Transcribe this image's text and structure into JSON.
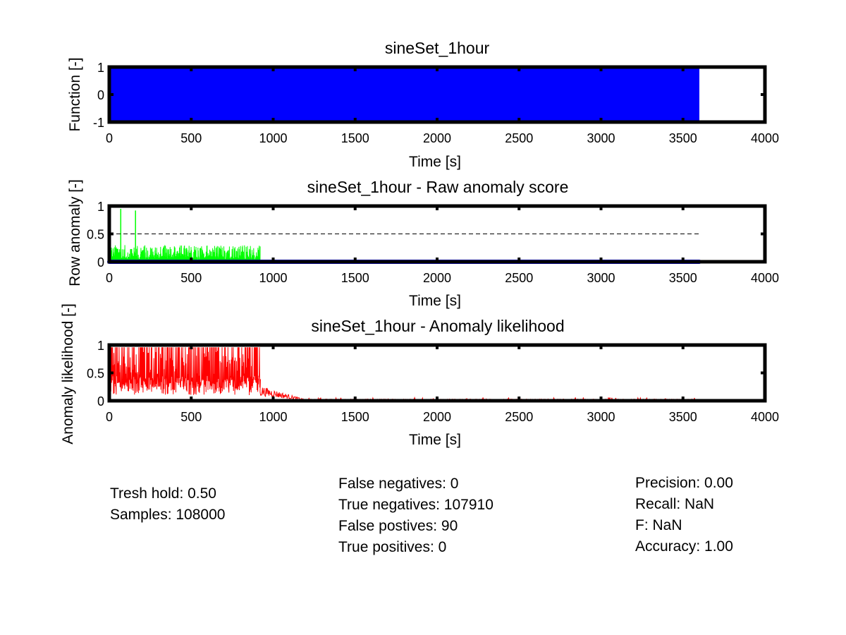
{
  "chart_data": [
    {
      "type": "area",
      "title": "sineSet_1hour",
      "xlabel": "Time [s]",
      "ylabel": "Function [-]",
      "xlim": [
        0,
        4000
      ],
      "ylim": [
        -1,
        1
      ],
      "x_ticks": [
        "0",
        "500",
        "1000",
        "1500",
        "2000",
        "2500",
        "3000",
        "3500",
        "4000"
      ],
      "y_ticks": [
        "-1",
        "0",
        "1"
      ],
      "series": [
        {
          "color": "#0000ff",
          "x_range": [
            0,
            3600
          ],
          "y_range": [
            -1,
            1
          ]
        }
      ]
    },
    {
      "type": "line",
      "title": "sineSet_1hour - Raw anomaly score",
      "xlabel": "Time [s]",
      "ylabel": "Row anomaly [-]",
      "xlim": [
        0,
        4000
      ],
      "ylim": [
        0,
        1
      ],
      "x_ticks": [
        "0",
        "500",
        "1000",
        "1500",
        "2000",
        "2500",
        "3000",
        "3500",
        "4000"
      ],
      "y_ticks": [
        "0",
        "0.5",
        "1"
      ],
      "threshold": 0.5,
      "series": [
        {
          "color": "#00ff00",
          "x_range": [
            0,
            920
          ],
          "typical_peak": 0.3,
          "spikes": [
            [
              70,
              0.95
            ],
            [
              160,
              0.92
            ]
          ]
        },
        {
          "color": "#0000ff",
          "x_range": [
            0,
            3600
          ],
          "value": 0
        }
      ]
    },
    {
      "type": "line",
      "title": "sineSet_1hour - Anomaly likelihood",
      "xlabel": "Time [s]",
      "ylabel": "Anomaly likelihood [-]",
      "xlim": [
        0,
        4000
      ],
      "ylim": [
        0,
        1
      ],
      "x_ticks": [
        "0",
        "500",
        "1000",
        "1500",
        "2000",
        "2500",
        "3000",
        "3500",
        "4000"
      ],
      "y_ticks": [
        "0",
        "0.5",
        "1"
      ],
      "series": [
        {
          "color": "#ff0000",
          "high_range": [
            0,
            920
          ],
          "decay_end": 1200,
          "tail_range": [
            1200,
            3600
          ],
          "tail_level": 0.02
        }
      ]
    }
  ],
  "stats": {
    "left": [
      "Tresh hold: 0.50",
      "Samples: 108000"
    ],
    "middle": [
      "False negatives: 0",
      "True negatives: 107910",
      "False postives: 90",
      "True positives: 0"
    ],
    "right": [
      "Precision: 0.00",
      "Recall:  NaN",
      "F:  NaN",
      "Accuracy: 1.00"
    ]
  }
}
